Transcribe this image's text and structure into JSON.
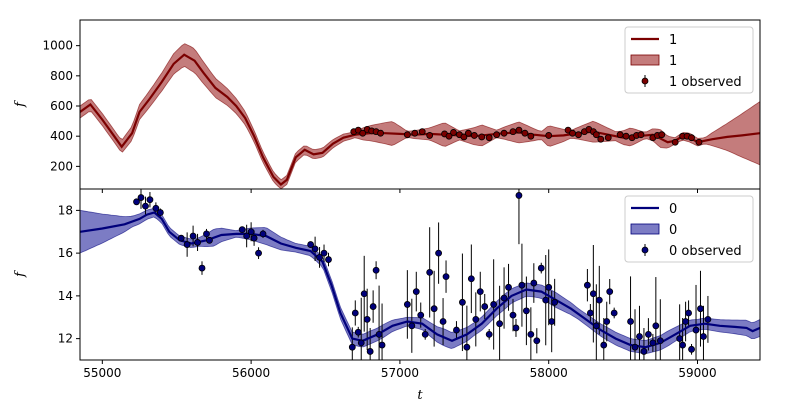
{
  "chart_data": [
    {
      "type": "line",
      "panel": "top",
      "ylabel": "f",
      "xlim": [
        54850,
        59420
      ],
      "ylim": [
        50,
        1170
      ],
      "yticks": [
        200,
        400,
        600,
        800,
        1000
      ],
      "legend": {
        "placement": "top-right",
        "entries": [
          "1",
          "1",
          "1 observed"
        ]
      },
      "color": "#7b0000",
      "band_color": "#b05050",
      "model_line": [
        [
          54850,
          560
        ],
        [
          54920,
          610
        ],
        [
          55000,
          510
        ],
        [
          55080,
          400
        ],
        [
          55130,
          330
        ],
        [
          55200,
          420
        ],
        [
          55250,
          560
        ],
        [
          55320,
          650
        ],
        [
          55400,
          760
        ],
        [
          55480,
          880
        ],
        [
          55550,
          940
        ],
        [
          55620,
          900
        ],
        [
          55680,
          820
        ],
        [
          55760,
          720
        ],
        [
          55840,
          660
        ],
        [
          55900,
          600
        ],
        [
          55960,
          520
        ],
        [
          56020,
          400
        ],
        [
          56080,
          260
        ],
        [
          56150,
          130
        ],
        [
          56200,
          80
        ],
        [
          56240,
          110
        ],
        [
          56300,
          260
        ],
        [
          56360,
          310
        ],
        [
          56420,
          280
        ],
        [
          56480,
          290
        ],
        [
          56550,
          350
        ],
        [
          56620,
          390
        ],
        [
          56700,
          410
        ],
        [
          56800,
          420
        ],
        [
          56900,
          420
        ],
        [
          57000,
          415
        ],
        [
          57100,
          410
        ],
        [
          57200,
          415
        ],
        [
          57300,
          410
        ],
        [
          57400,
          405
        ],
        [
          57500,
          400
        ],
        [
          57600,
          410
        ],
        [
          57700,
          420
        ],
        [
          57800,
          425
        ],
        [
          57900,
          410
        ],
        [
          58000,
          400
        ],
        [
          58100,
          405
        ],
        [
          58200,
          420
        ],
        [
          58300,
          430
        ],
        [
          58400,
          410
        ],
        [
          58500,
          390
        ],
        [
          58600,
          400
        ],
        [
          58700,
          410
        ],
        [
          58800,
          360
        ],
        [
          58850,
          370
        ],
        [
          58900,
          400
        ],
        [
          58950,
          390
        ],
        [
          59000,
          360
        ],
        [
          59100,
          380
        ],
        [
          59200,
          395
        ],
        [
          59300,
          405
        ],
        [
          59420,
          420
        ]
      ],
      "band_width": [
        [
          54850,
          40
        ],
        [
          55100,
          40
        ],
        [
          55400,
          60
        ],
        [
          55600,
          80
        ],
        [
          55800,
          60
        ],
        [
          56000,
          40
        ],
        [
          56200,
          30
        ],
        [
          56500,
          30
        ],
        [
          56700,
          20
        ],
        [
          56750,
          40
        ],
        [
          56950,
          80
        ],
        [
          57050,
          20
        ],
        [
          57200,
          40
        ],
        [
          57300,
          80
        ],
        [
          57400,
          30
        ],
        [
          57550,
          70
        ],
        [
          57650,
          25
        ],
        [
          57800,
          70
        ],
        [
          57950,
          25
        ],
        [
          58000,
          70
        ],
        [
          58150,
          25
        ],
        [
          58300,
          70
        ],
        [
          58450,
          30
        ],
        [
          58550,
          60
        ],
        [
          58650,
          20
        ],
        [
          58750,
          60
        ],
        [
          58850,
          20
        ],
        [
          58950,
          30
        ],
        [
          59050,
          20
        ],
        [
          59200,
          90
        ],
        [
          59420,
          210
        ]
      ],
      "observed": [
        [
          56690,
          430
        ],
        [
          56720,
          440
        ],
        [
          56750,
          420
        ],
        [
          56780,
          445
        ],
        [
          56810,
          435
        ],
        [
          56840,
          430
        ],
        [
          56870,
          420
        ],
        [
          57050,
          410
        ],
        [
          57100,
          420
        ],
        [
          57150,
          430
        ],
        [
          57200,
          405
        ],
        [
          57300,
          415
        ],
        [
          57330,
          400
        ],
        [
          57360,
          425
        ],
        [
          57400,
          410
        ],
        [
          57430,
          395
        ],
        [
          57460,
          420
        ],
        [
          57500,
          405
        ],
        [
          57550,
          395
        ],
        [
          57600,
          390
        ],
        [
          57650,
          410
        ],
        [
          57700,
          420
        ],
        [
          57760,
          430
        ],
        [
          57800,
          440
        ],
        [
          57840,
          420
        ],
        [
          57880,
          400
        ],
        [
          58000,
          405
        ],
        [
          58130,
          440
        ],
        [
          58160,
          420
        ],
        [
          58200,
          410
        ],
        [
          58240,
          430
        ],
        [
          58270,
          445
        ],
        [
          58300,
          430
        ],
        [
          58320,
          410
        ],
        [
          58350,
          380
        ],
        [
          58400,
          390
        ],
        [
          58480,
          410
        ],
        [
          58520,
          400
        ],
        [
          58560,
          390
        ],
        [
          58590,
          405
        ],
        [
          58620,
          410
        ],
        [
          58700,
          390
        ],
        [
          58730,
          405
        ],
        [
          58760,
          410
        ],
        [
          58850,
          360
        ],
        [
          58900,
          400
        ],
        [
          58930,
          400
        ],
        [
          58960,
          390
        ],
        [
          59010,
          360
        ]
      ]
    },
    {
      "type": "line",
      "panel": "bottom",
      "ylabel": "f",
      "xlabel": "t",
      "xlim": [
        54850,
        59420
      ],
      "ylim": [
        11.0,
        19.0
      ],
      "xticks": [
        55000,
        56000,
        57000,
        58000,
        59000
      ],
      "yticks": [
        12,
        14,
        16,
        18
      ],
      "legend": {
        "placement": "top-right",
        "entries": [
          "0",
          "0",
          "0 observed"
        ]
      },
      "color": "#00007b",
      "band_color": "#5050b0",
      "model_line": [
        [
          54850,
          17.0
        ],
        [
          55000,
          17.15
        ],
        [
          55150,
          17.35
        ],
        [
          55250,
          17.6
        ],
        [
          55300,
          17.8
        ],
        [
          55350,
          17.9
        ],
        [
          55400,
          17.6
        ],
        [
          55450,
          17.0
        ],
        [
          55520,
          16.6
        ],
        [
          55600,
          16.45
        ],
        [
          55700,
          16.6
        ],
        [
          55800,
          16.85
        ],
        [
          55900,
          16.9
        ],
        [
          56000,
          16.9
        ],
        [
          56100,
          16.8
        ],
        [
          56200,
          16.45
        ],
        [
          56300,
          16.25
        ],
        [
          56400,
          16.1
        ],
        [
          56480,
          15.6
        ],
        [
          56540,
          14.5
        ],
        [
          56600,
          13.2
        ],
        [
          56680,
          12.0
        ],
        [
          56750,
          11.9
        ],
        [
          56850,
          12.2
        ],
        [
          56950,
          12.6
        ],
        [
          57050,
          12.8
        ],
        [
          57150,
          12.7
        ],
        [
          57250,
          12.2
        ],
        [
          57350,
          11.9
        ],
        [
          57450,
          12.2
        ],
        [
          57550,
          12.7
        ],
        [
          57650,
          13.4
        ],
        [
          57750,
          14.0
        ],
        [
          57850,
          14.3
        ],
        [
          57950,
          14.2
        ],
        [
          58050,
          13.8
        ],
        [
          58150,
          13.4
        ],
        [
          58250,
          12.9
        ],
        [
          58350,
          12.4
        ],
        [
          58450,
          12.0
        ],
        [
          58550,
          11.7
        ],
        [
          58650,
          11.6
        ],
        [
          58750,
          11.8
        ],
        [
          58850,
          12.2
        ],
        [
          58950,
          12.6
        ],
        [
          59050,
          12.7
        ],
        [
          59150,
          12.6
        ],
        [
          59250,
          12.55
        ],
        [
          59330,
          12.5
        ],
        [
          59370,
          12.35
        ],
        [
          59420,
          12.5
        ]
      ],
      "band_width": [
        [
          54850,
          1.0
        ],
        [
          55200,
          0.25
        ],
        [
          55350,
          0.2
        ],
        [
          55500,
          0.2
        ],
        [
          55650,
          0.2
        ],
        [
          55750,
          0.4
        ],
        [
          55900,
          0.15
        ],
        [
          56100,
          0.4
        ],
        [
          56300,
          0.2
        ],
        [
          56500,
          0.25
        ],
        [
          56700,
          0.3
        ],
        [
          56900,
          0.3
        ],
        [
          57050,
          0.2
        ],
        [
          57300,
          0.4
        ],
        [
          57500,
          0.3
        ],
        [
          57700,
          0.35
        ],
        [
          57900,
          0.3
        ],
        [
          58050,
          0.35
        ],
        [
          58200,
          0.25
        ],
        [
          58400,
          0.3
        ],
        [
          58600,
          0.3
        ],
        [
          58800,
          0.35
        ],
        [
          59000,
          0.25
        ],
        [
          59200,
          0.3
        ],
        [
          59420,
          0.4
        ]
      ],
      "observed": [
        [
          55230,
          18.4
        ],
        [
          55260,
          18.6
        ],
        [
          55290,
          18.2
        ],
        [
          55320,
          18.5
        ],
        [
          55360,
          18.1
        ],
        [
          55390,
          17.9
        ],
        [
          55530,
          16.7
        ],
        [
          55570,
          16.4
        ],
        [
          55610,
          16.8
        ],
        [
          55640,
          16.5
        ],
        [
          55670,
          15.3
        ],
        [
          55700,
          16.9
        ],
        [
          55720,
          16.6
        ],
        [
          55940,
          17.1
        ],
        [
          55970,
          16.8
        ],
        [
          56000,
          17.0
        ],
        [
          56020,
          16.7
        ],
        [
          56050,
          16.0
        ],
        [
          56080,
          16.9
        ],
        [
          56400,
          16.4
        ],
        [
          56430,
          16.2
        ],
        [
          56460,
          15.8
        ],
        [
          56490,
          16.0
        ],
        [
          56520,
          15.7
        ],
        [
          56680,
          11.6
        ],
        [
          56700,
          13.2
        ],
        [
          56720,
          12.3
        ],
        [
          56740,
          11.8
        ],
        [
          56760,
          14.1
        ],
        [
          56780,
          12.9
        ],
        [
          56800,
          11.4
        ],
        [
          56820,
          13.5
        ],
        [
          56840,
          15.2
        ],
        [
          56860,
          12.2
        ],
        [
          56880,
          11.7
        ],
        [
          57050,
          13.6
        ],
        [
          57080,
          12.6
        ],
        [
          57110,
          14.2
        ],
        [
          57140,
          13.1
        ],
        [
          57170,
          12.2
        ],
        [
          57200,
          15.1
        ],
        [
          57230,
          13.4
        ],
        [
          57260,
          16.0
        ],
        [
          57290,
          12.8
        ],
        [
          57310,
          14.9
        ],
        [
          57380,
          12.4
        ],
        [
          57420,
          13.7
        ],
        [
          57450,
          11.6
        ],
        [
          57480,
          14.8
        ],
        [
          57510,
          12.9
        ],
        [
          57540,
          14.2
        ],
        [
          57570,
          13.5
        ],
        [
          57600,
          12.2
        ],
        [
          57630,
          13.6
        ],
        [
          57670,
          12.7
        ],
        [
          57700,
          13.9
        ],
        [
          57730,
          14.4
        ],
        [
          57760,
          13.1
        ],
        [
          57780,
          12.5
        ],
        [
          57800,
          18.7
        ],
        [
          57820,
          14.5
        ],
        [
          57850,
          13.3
        ],
        [
          57880,
          12.2
        ],
        [
          57900,
          14.6
        ],
        [
          57920,
          11.9
        ],
        [
          57950,
          15.3
        ],
        [
          57980,
          13.8
        ],
        [
          58000,
          14.4
        ],
        [
          58020,
          12.8
        ],
        [
          58040,
          13.7
        ],
        [
          58260,
          14.5
        ],
        [
          58280,
          13.2
        ],
        [
          58300,
          14.1
        ],
        [
          58320,
          12.6
        ],
        [
          58340,
          13.8
        ],
        [
          58370,
          11.7
        ],
        [
          58390,
          12.8
        ],
        [
          58410,
          14.2
        ],
        [
          58440,
          13.2
        ],
        [
          58550,
          12.8
        ],
        [
          58580,
          11.6
        ],
        [
          58610,
          12.1
        ],
        [
          58640,
          11.4
        ],
        [
          58670,
          12.2
        ],
        [
          58700,
          11.8
        ],
        [
          58720,
          12.6
        ],
        [
          58750,
          11.9
        ],
        [
          58880,
          12.0
        ],
        [
          58900,
          11.7
        ],
        [
          58920,
          12.8
        ],
        [
          58940,
          13.2
        ],
        [
          58960,
          11.5
        ],
        [
          58990,
          12.4
        ],
        [
          59020,
          13.4
        ],
        [
          59040,
          12.1
        ],
        [
          59070,
          12.9
        ]
      ]
    }
  ]
}
